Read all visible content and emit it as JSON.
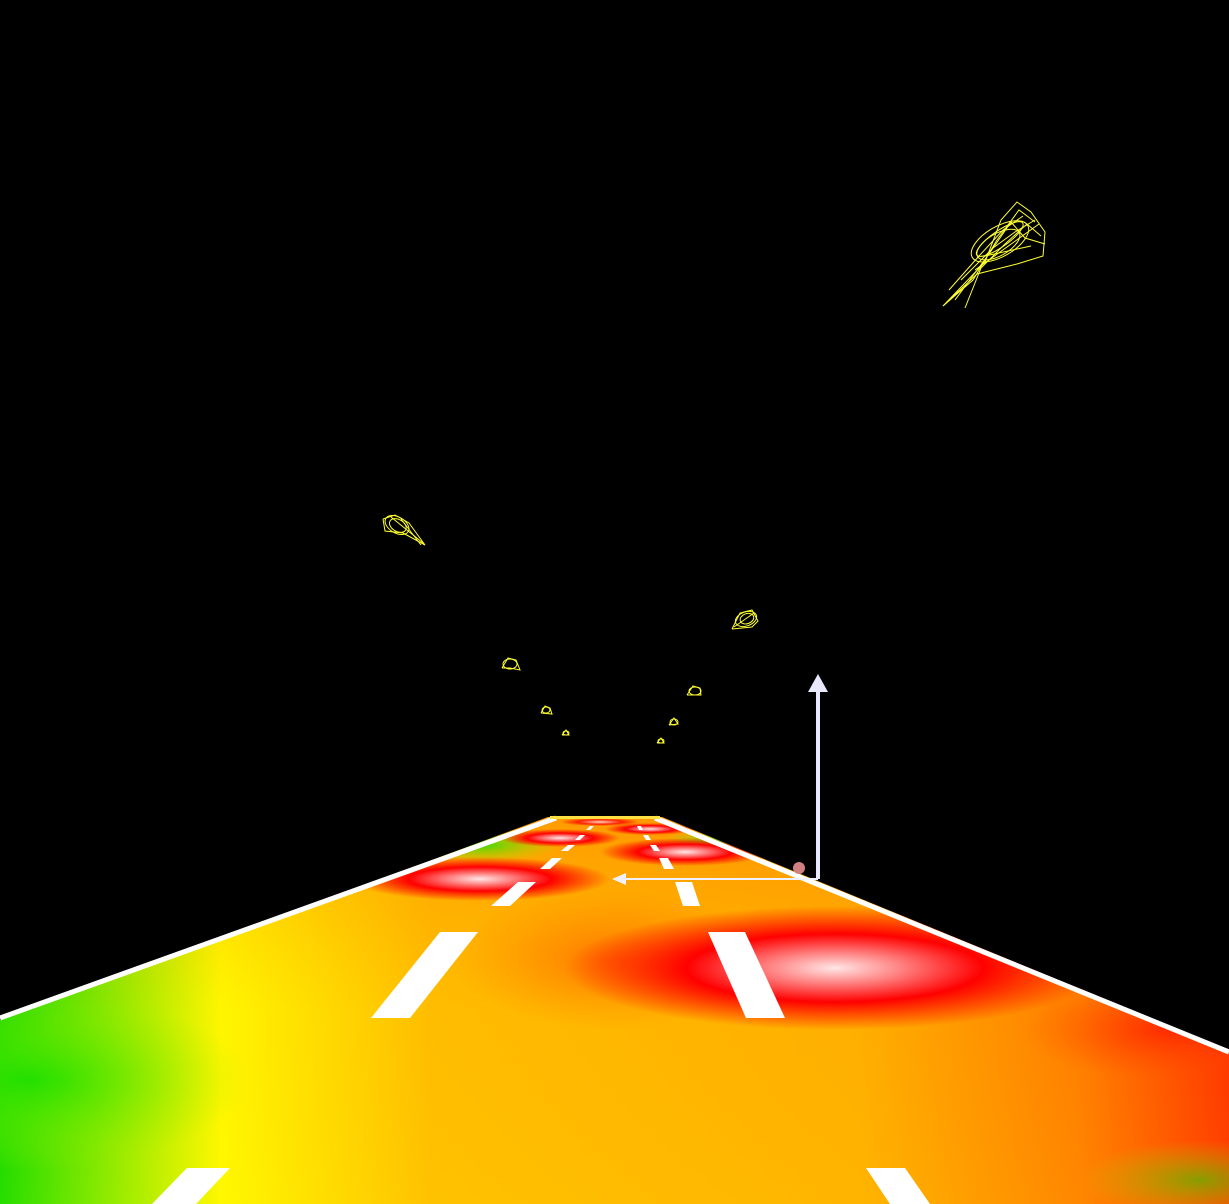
{
  "scene": {
    "background": "#000000",
    "road": {
      "lanes": 3,
      "lane_marking_color": "#ffffff",
      "heatmap_colors": {
        "low": "#00e600",
        "mid_low": "#ffff00",
        "mid": "#ffb000",
        "high": "#ff0000",
        "peak": "#ffd0d0"
      }
    },
    "direction_arrow": {
      "color": "#e8e8ff",
      "icon": "up-arrow-icon"
    },
    "wireframe_objects": {
      "color": "#ffff33",
      "icon": "wireframe-cone-icon",
      "count": 10
    }
  }
}
